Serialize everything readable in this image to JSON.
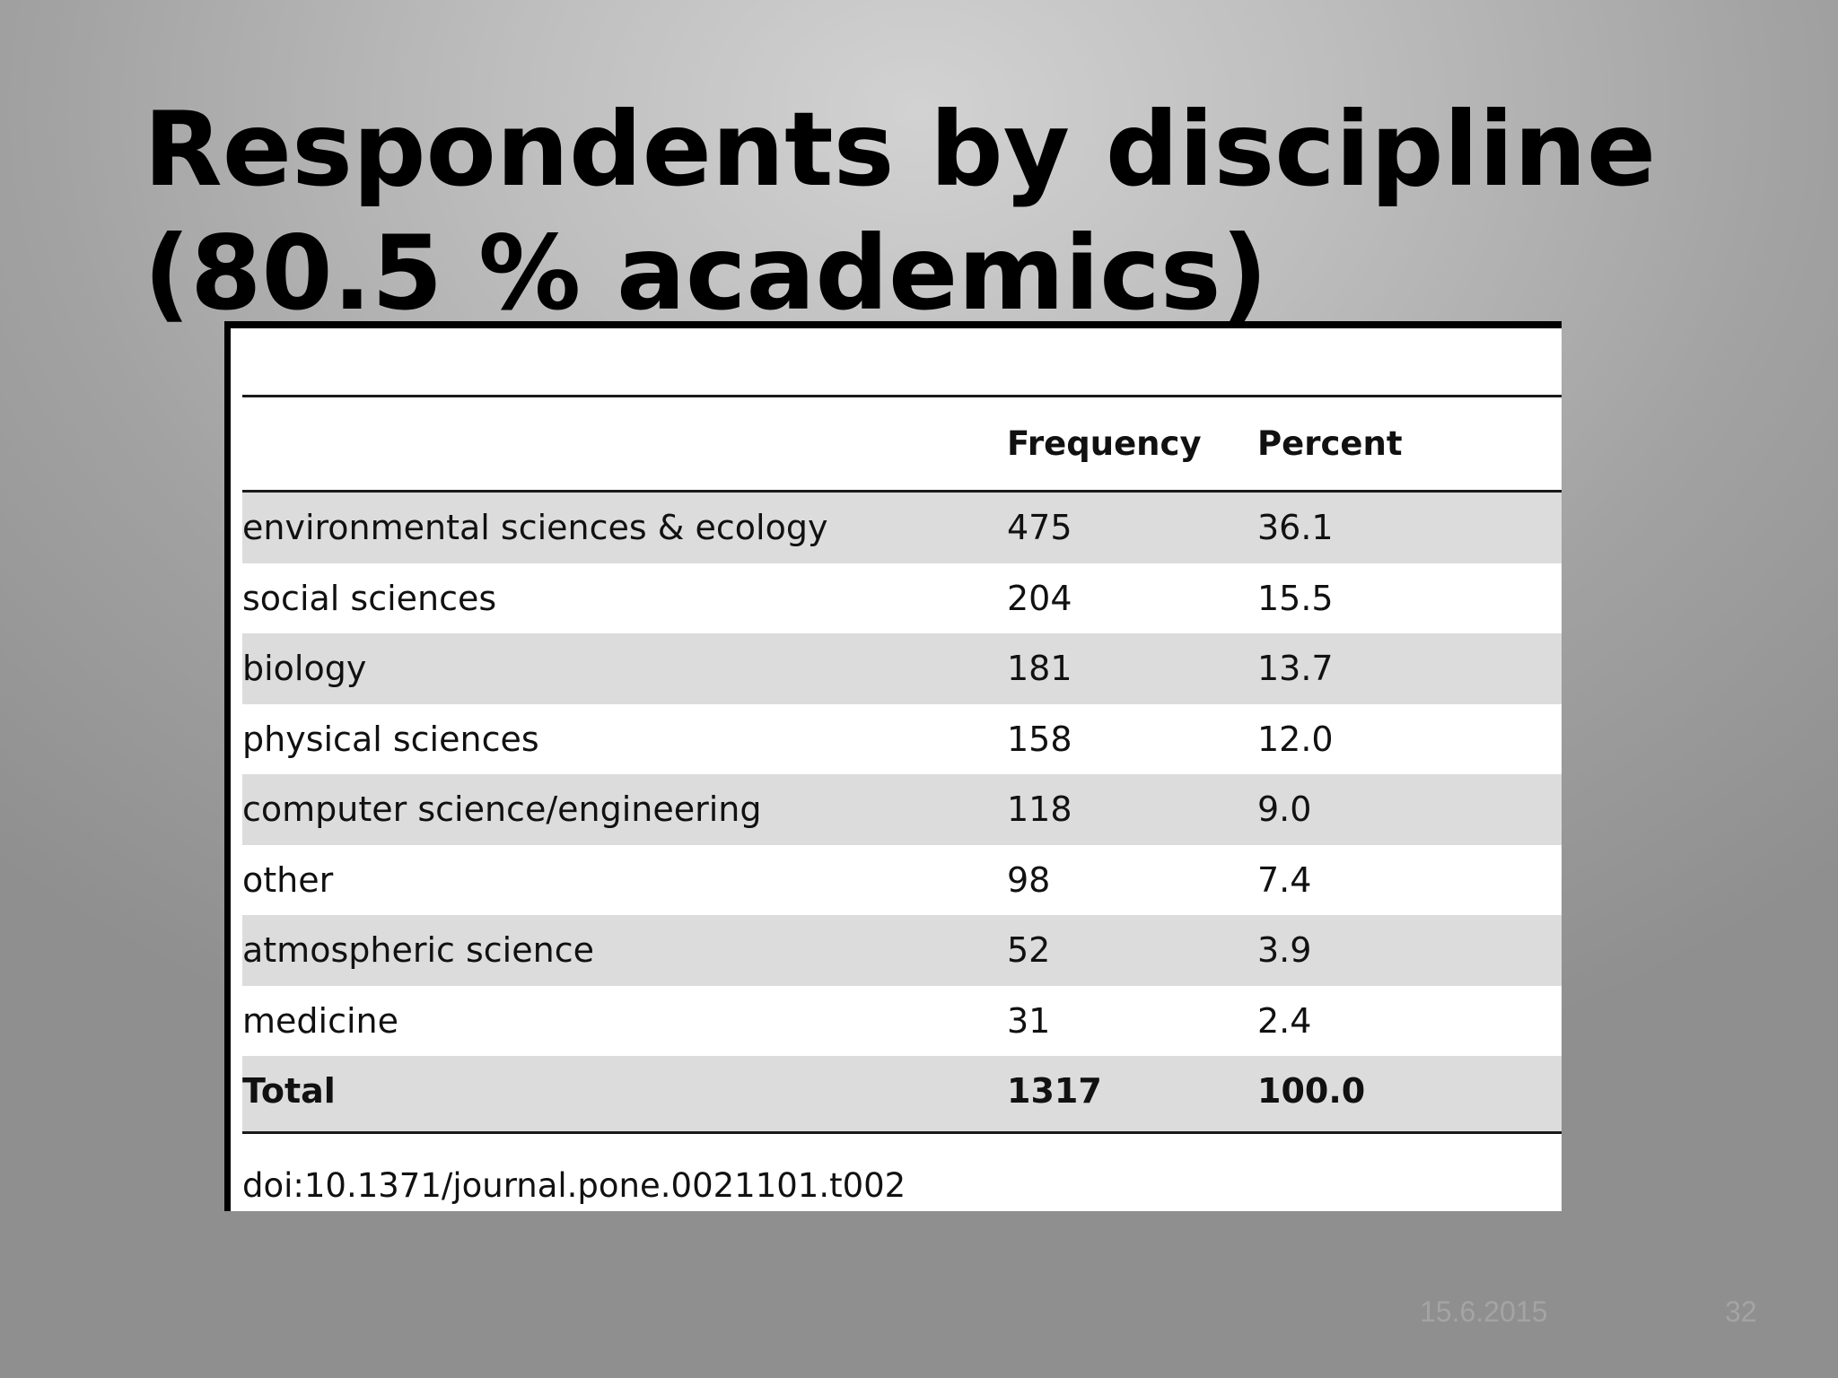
{
  "slide": {
    "title_line1": "Respondents by discipline",
    "title_line2": "(80.5 % academics)",
    "footer_date": "15.6.2015",
    "page_number": "32"
  },
  "table": {
    "headers": {
      "label": "",
      "frequency": "Frequency",
      "percent": "Percent"
    },
    "rows": [
      {
        "label": "environmental sciences & ecology",
        "frequency": "475",
        "percent": "36.1"
      },
      {
        "label": "social sciences",
        "frequency": "204",
        "percent": "15.5"
      },
      {
        "label": "biology",
        "frequency": "181",
        "percent": "13.7"
      },
      {
        "label": "physical sciences",
        "frequency": "158",
        "percent": "12.0"
      },
      {
        "label": "computer science/engineering",
        "frequency": "118",
        "percent": "9.0"
      },
      {
        "label": "other",
        "frequency": "98",
        "percent": "7.4"
      },
      {
        "label": "atmospheric science",
        "frequency": "52",
        "percent": "3.9"
      },
      {
        "label": "medicine",
        "frequency": "31",
        "percent": "2.4"
      }
    ],
    "total": {
      "label": "Total",
      "frequency": "1317",
      "percent": "100.0"
    },
    "doi": "doi:10.1371/journal.pone.0021101.t002"
  },
  "colors": {
    "row_shade": "#dcdcdc",
    "footer_text": "#a4a4a4"
  }
}
